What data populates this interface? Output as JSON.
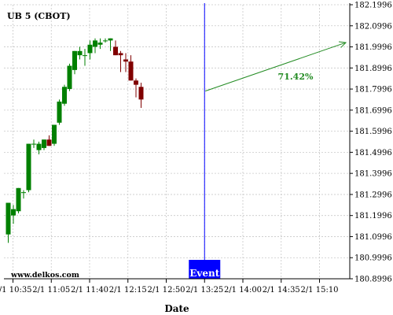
{
  "chart_data": {
    "type": "candlestick",
    "title": "UB 5 (CBOT)",
    "xlabel": "Date",
    "ylabel": "",
    "watermark": "www.delkos.com",
    "grid": true,
    "y_axis_side": "right",
    "ylim": [
      180.8996,
      182.1996
    ],
    "yticks": [
      "180.8996",
      "180.9996",
      "181.0996",
      "181.1996",
      "181.2996",
      "181.3996",
      "181.4996",
      "181.5996",
      "181.6996",
      "181.7996",
      "181.8996",
      "181.9996",
      "182.0996",
      "182.1996"
    ],
    "xticks": [
      "2/1 10:35",
      "2/1 11:05",
      "2/1 11:40",
      "2/1 12:15",
      "2/1 12:50",
      "2/1 13:25",
      "2/1 14:00",
      "2/1 14:35",
      "2/1 15:10"
    ],
    "up_color": "#008000",
    "down_color": "#800000",
    "candles": [
      {
        "o": 181.11,
        "h": 181.26,
        "l": 181.07,
        "c": 181.26
      },
      {
        "o": 181.2,
        "h": 181.25,
        "l": 181.16,
        "c": 181.23
      },
      {
        "o": 181.22,
        "h": 181.33,
        "l": 181.21,
        "c": 181.33
      },
      {
        "o": 181.31,
        "h": 181.32,
        "l": 181.28,
        "c": 181.31
      },
      {
        "o": 181.32,
        "h": 181.54,
        "l": 181.31,
        "c": 181.54
      },
      {
        "o": 181.54,
        "h": 181.56,
        "l": 181.52,
        "c": 181.54
      },
      {
        "o": 181.51,
        "h": 181.55,
        "l": 181.49,
        "c": 181.54
      },
      {
        "o": 181.52,
        "h": 181.56,
        "l": 181.51,
        "c": 181.56
      },
      {
        "o": 181.56,
        "h": 181.58,
        "l": 181.53,
        "c": 181.53
      },
      {
        "o": 181.54,
        "h": 181.63,
        "l": 181.53,
        "c": 181.63
      },
      {
        "o": 181.64,
        "h": 181.75,
        "l": 181.63,
        "c": 181.74
      },
      {
        "o": 181.73,
        "h": 181.82,
        "l": 181.72,
        "c": 181.81
      },
      {
        "o": 181.8,
        "h": 181.92,
        "l": 181.79,
        "c": 181.91
      },
      {
        "o": 181.89,
        "h": 181.98,
        "l": 181.87,
        "c": 181.98
      },
      {
        "o": 181.96,
        "h": 182.0,
        "l": 181.94,
        "c": 181.98
      },
      {
        "o": 181.96,
        "h": 181.99,
        "l": 181.91,
        "c": 181.96
      },
      {
        "o": 181.97,
        "h": 182.03,
        "l": 181.94,
        "c": 182.01
      },
      {
        "o": 182.0,
        "h": 182.04,
        "l": 181.97,
        "c": 182.03
      },
      {
        "o": 182.01,
        "h": 182.04,
        "l": 181.99,
        "c": 182.02
      },
      {
        "o": 182.03,
        "h": 182.04,
        "l": 182.02,
        "c": 182.03
      },
      {
        "o": 182.03,
        "h": 182.04,
        "l": 181.98,
        "c": 182.04
      },
      {
        "o": 182.0,
        "h": 182.03,
        "l": 181.96,
        "c": 181.96
      },
      {
        "o": 181.97,
        "h": 181.98,
        "l": 181.88,
        "c": 181.96
      },
      {
        "o": 181.94,
        "h": 181.97,
        "l": 181.88,
        "c": 181.93
      },
      {
        "o": 181.93,
        "h": 181.96,
        "l": 181.84,
        "c": 181.84
      },
      {
        "o": 181.84,
        "h": 181.85,
        "l": 181.76,
        "c": 181.82
      },
      {
        "o": 181.81,
        "h": 181.83,
        "l": 181.71,
        "c": 181.75
      }
    ],
    "event_label": "Event",
    "event_color": "#0000ff",
    "forecast_label": "71.42%",
    "forecast_color": "#228B22",
    "forecast_start": {
      "x": "2/1 13:25",
      "y": 181.79
    },
    "forecast_end": {
      "x": "2/1 15:10",
      "y": 182.02
    }
  }
}
